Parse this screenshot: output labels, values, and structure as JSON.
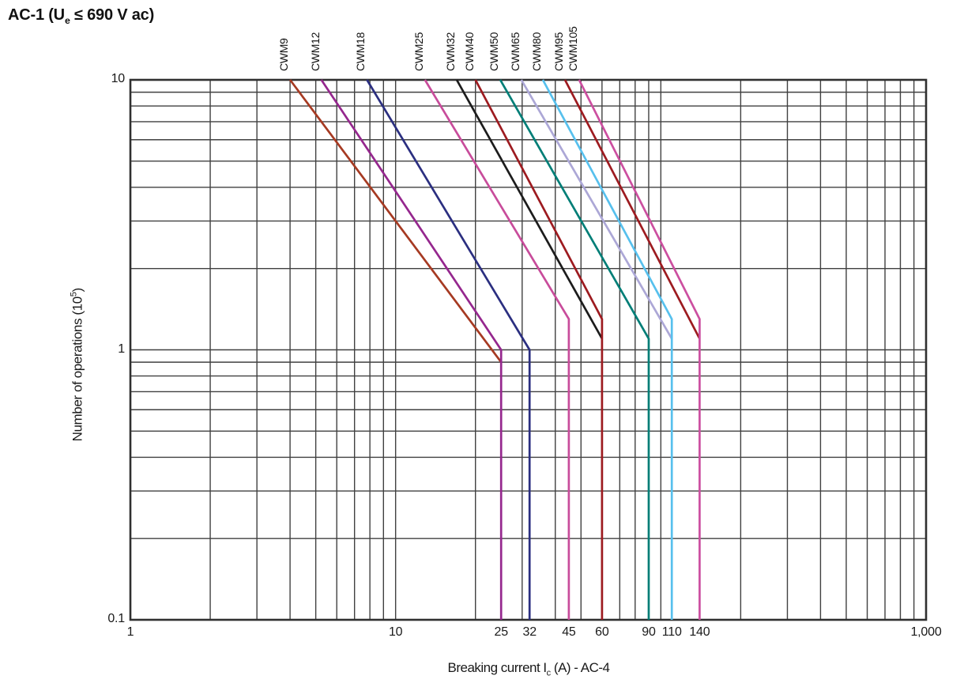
{
  "title": {
    "pre": "AC-1 (U",
    "sub": "e",
    "post": " ≤ 690 V ac)"
  },
  "chart_data": {
    "type": "line",
    "title": "AC-1 (Ue ≤ 690 V ac)",
    "grid": true,
    "legend_position": "top-rotated-labels",
    "x_axis": {
      "scale": "log",
      "min": 1,
      "max": 1000,
      "label": {
        "pre": "Breaking current I",
        "sub": "c",
        "post": " (A) - AC-4"
      },
      "ticks": [
        {
          "value": 1,
          "label": "1"
        },
        {
          "value": 10,
          "label": "10"
        },
        {
          "value": 25,
          "label": "25"
        },
        {
          "value": 32,
          "label": "32"
        },
        {
          "value": 45,
          "label": "45"
        },
        {
          "value": 60,
          "label": "60"
        },
        {
          "value": 90,
          "label": "90"
        },
        {
          "value": 110,
          "label": "110"
        },
        {
          "value": 140,
          "label": "140"
        },
        {
          "value": 1000,
          "label": "1,000"
        }
      ]
    },
    "y_axis": {
      "scale": "log",
      "min": 0.1,
      "max": 10,
      "label": {
        "pre": "Number of operations (10",
        "sup": "5",
        "post": ")"
      },
      "ticks": [
        {
          "value": 10,
          "label": "10"
        },
        {
          "value": 1,
          "label": "1"
        },
        {
          "value": 0.1,
          "label": "0.1"
        }
      ]
    },
    "grid_color": "#404040",
    "border_color": "#303030",
    "series": [
      {
        "name": "CWM9",
        "color": "#A63A22",
        "points": [
          [
            4.0,
            10
          ],
          [
            25,
            0.9
          ]
        ]
      },
      {
        "name": "CWM12",
        "color": "#95278E",
        "points": [
          [
            5.25,
            10
          ],
          [
            25,
            1.0
          ],
          [
            25,
            0.1
          ]
        ]
      },
      {
        "name": "CWM18",
        "color": "#2B2F80",
        "points": [
          [
            7.8,
            10
          ],
          [
            32,
            1.0
          ],
          [
            32,
            0.1
          ]
        ]
      },
      {
        "name": "CWM25",
        "color": "#C84C9B",
        "points": [
          [
            12.9,
            10
          ],
          [
            45,
            1.3
          ],
          [
            45,
            0.1
          ]
        ]
      },
      {
        "name": "CWM32",
        "color": "#1C1C1C",
        "points": [
          [
            17.0,
            10
          ],
          [
            60,
            1.1
          ]
        ]
      },
      {
        "name": "CWM40",
        "color": "#9D1B20",
        "points": [
          [
            20.0,
            10
          ],
          [
            60,
            1.3
          ],
          [
            60,
            0.1
          ]
        ]
      },
      {
        "name": "CWM50",
        "color": "#007E77",
        "points": [
          [
            24.8,
            10
          ],
          [
            90,
            1.1
          ],
          [
            90,
            0.1
          ]
        ]
      },
      {
        "name": "CWM65",
        "color": "#ACA7D6",
        "points": [
          [
            29.8,
            10
          ],
          [
            110,
            1.1
          ]
        ]
      },
      {
        "name": "CWM80",
        "color": "#57C0ED",
        "points": [
          [
            35.9,
            10
          ],
          [
            110,
            1.3
          ],
          [
            110,
            0.1
          ]
        ]
      },
      {
        "name": "CWM95",
        "color": "#9D1B20",
        "points": [
          [
            43.5,
            10
          ],
          [
            140,
            1.1
          ]
        ]
      },
      {
        "name": "CWM105",
        "color": "#CC4FA0",
        "points": [
          [
            49.2,
            10
          ],
          [
            140,
            1.3
          ],
          [
            140,
            0.1
          ]
        ]
      }
    ]
  }
}
